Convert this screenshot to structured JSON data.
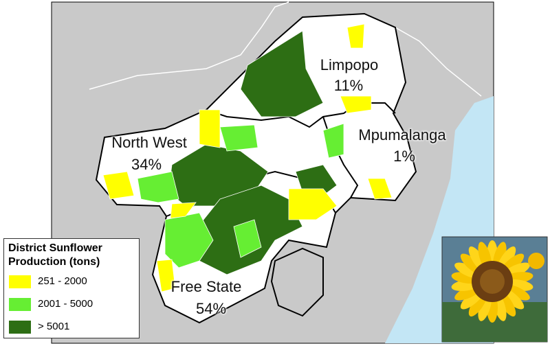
{
  "regions": [
    {
      "name": "Limpopo",
      "share": "11%"
    },
    {
      "name": "North West",
      "share": "34%"
    },
    {
      "name": "Mpumalanga",
      "share": "1%"
    },
    {
      "name": "Free State",
      "share": "54%"
    }
  ],
  "legend": {
    "title": "District Sunflower Production (tons)",
    "items": [
      {
        "label": "251 - 2000",
        "color": "#ffff00"
      },
      {
        "label": "2001 - 5000",
        "color": "#66ee33"
      },
      {
        "label": "> 5001",
        "color": "#2d6e14"
      }
    ]
  }
}
